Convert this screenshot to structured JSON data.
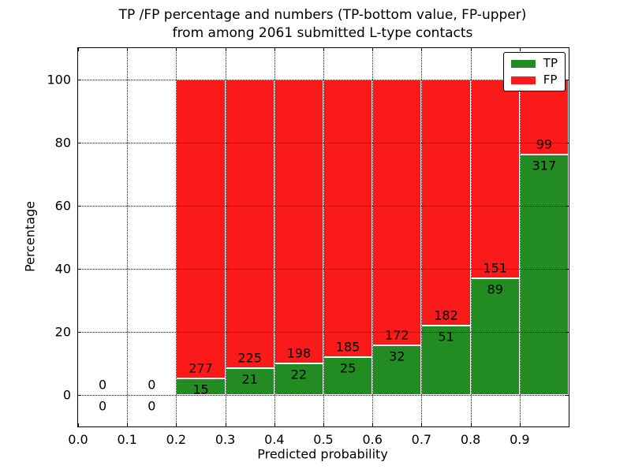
{
  "chart_data": {
    "type": "bar",
    "stacked": true,
    "title": "TP /FP percentage and numbers (TP-bottom value, FP-upper) from among 2061 submitted L-type contacts",
    "title_lines": [
      "TP /FP percentage and numbers (TP-bottom value, FP-upper)",
      "from among 2061 submitted L-type contacts"
    ],
    "xlabel": "Predicted probability",
    "ylabel": "Percentage",
    "xlim": [
      0,
      1
    ],
    "ylim": [
      -10,
      110
    ],
    "grid": true,
    "legend_position": "upper right",
    "x_ticks": [
      {
        "value": 0.0,
        "label": "0.0"
      },
      {
        "value": 0.1,
        "label": "0.1"
      },
      {
        "value": 0.2,
        "label": "0.2"
      },
      {
        "value": 0.3,
        "label": "0.3"
      },
      {
        "value": 0.4,
        "label": "0.4"
      },
      {
        "value": 0.5,
        "label": "0.5"
      },
      {
        "value": 0.6,
        "label": "0.6"
      },
      {
        "value": 0.7,
        "label": "0.7"
      },
      {
        "value": 0.8,
        "label": "0.8"
      },
      {
        "value": 0.9,
        "label": "0.9"
      }
    ],
    "y_ticks": [
      {
        "value": 0,
        "label": "0"
      },
      {
        "value": 20,
        "label": "20"
      },
      {
        "value": 40,
        "label": "40"
      },
      {
        "value": 60,
        "label": "60"
      },
      {
        "value": 80,
        "label": "80"
      },
      {
        "value": 100,
        "label": "100"
      }
    ],
    "bin_width": 0.1,
    "bins": [
      {
        "x_start": 0.0,
        "tp": 0,
        "fp": 0
      },
      {
        "x_start": 0.1,
        "tp": 0,
        "fp": 0
      },
      {
        "x_start": 0.2,
        "tp": 15,
        "fp": 277
      },
      {
        "x_start": 0.3,
        "tp": 21,
        "fp": 225
      },
      {
        "x_start": 0.4,
        "tp": 22,
        "fp": 198
      },
      {
        "x_start": 0.5,
        "tp": 25,
        "fp": 185
      },
      {
        "x_start": 0.6,
        "tp": 32,
        "fp": 172
      },
      {
        "x_start": 0.7,
        "tp": 51,
        "fp": 182
      },
      {
        "x_start": 0.8,
        "tp": 89,
        "fp": 151
      },
      {
        "x_start": 0.9,
        "tp": 317,
        "fp": 99
      }
    ],
    "colors": {
      "tp": "#228b22",
      "fp": "#fa1a1a",
      "bar_edge": "#ffffff",
      "grid": "#1a1a1a"
    },
    "legend": [
      {
        "label": "TP",
        "color": "#228b22"
      },
      {
        "label": "FP",
        "color": "#fa1a1a"
      }
    ]
  }
}
